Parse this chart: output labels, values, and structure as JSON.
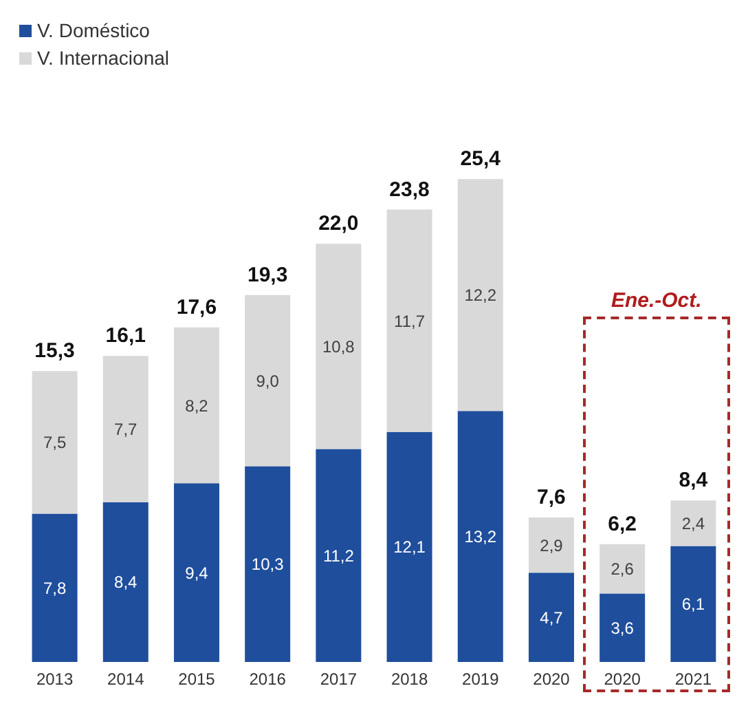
{
  "chart_data": {
    "type": "bar",
    "stacked": true,
    "categories": [
      "2013",
      "2014",
      "2015",
      "2016",
      "2017",
      "2018",
      "2019",
      "2020",
      "2020",
      "2021"
    ],
    "series": [
      {
        "name": "V. Doméstico",
        "color": "#1f4e9c",
        "values": [
          7.8,
          8.4,
          9.4,
          10.3,
          11.2,
          12.1,
          13.2,
          4.7,
          3.6,
          6.1
        ],
        "value_labels": [
          "7,8",
          "8,4",
          "9,4",
          "10,3",
          "11,2",
          "12,1",
          "13,2",
          "4,7",
          "3,6",
          "6,1"
        ]
      },
      {
        "name": "V. Internacional",
        "color": "#d9d9d9",
        "values": [
          7.5,
          7.7,
          8.2,
          9.0,
          10.8,
          11.7,
          12.2,
          2.9,
          2.6,
          2.4
        ],
        "value_labels": [
          "7,5",
          "7,7",
          "8,2",
          "9,0",
          "10,8",
          "11,7",
          "12,2",
          "2,9",
          "2,6",
          "2,4"
        ]
      }
    ],
    "totals": [
      "15,3",
      "16,1",
      "17,6",
      "19,3",
      "22,0",
      "23,8",
      "25,4",
      "7,6",
      "6,2",
      "8,4"
    ],
    "annotations": [
      "Ene.-Oct."
    ],
    "legend": "top left"
  }
}
